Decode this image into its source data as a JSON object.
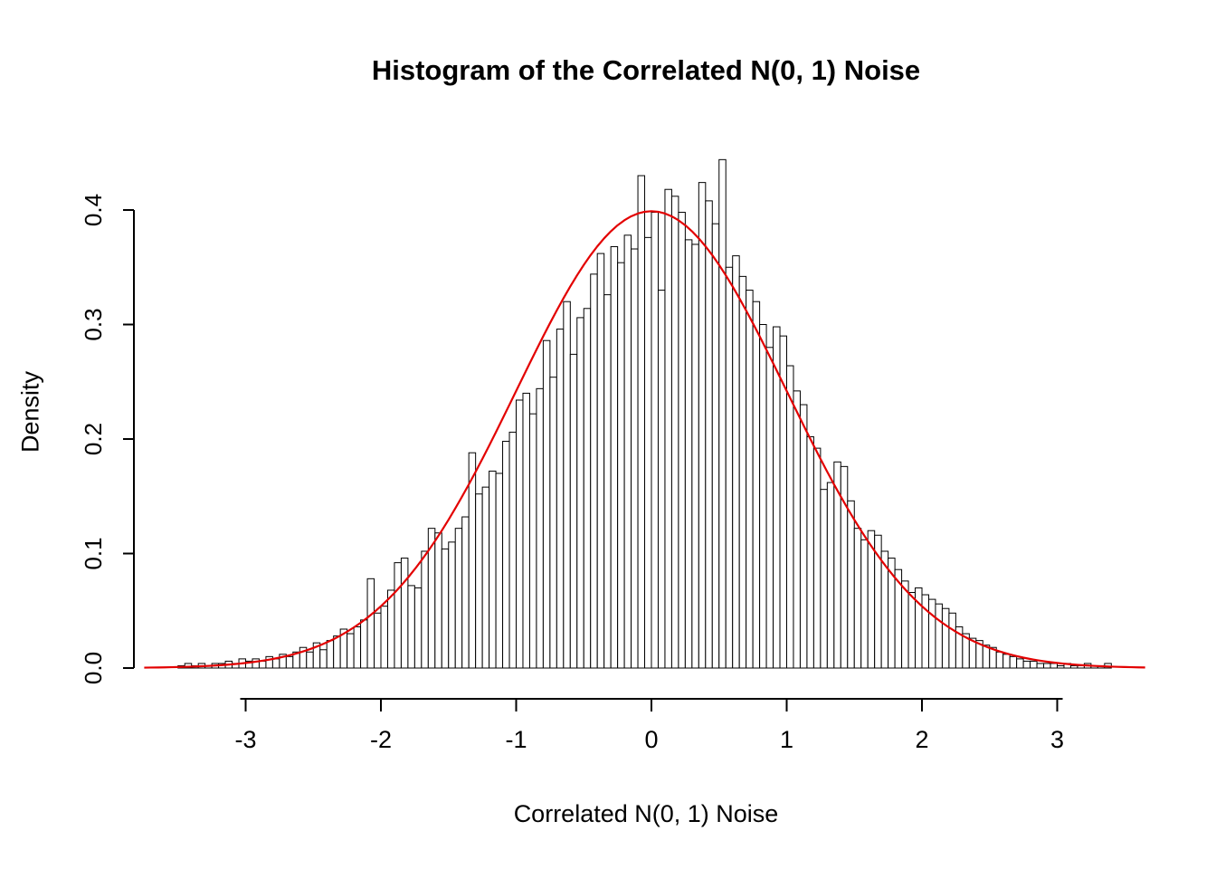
{
  "page": {
    "background": "#ffffff"
  },
  "chart_data": {
    "type": "bar",
    "subtype": "histogram",
    "title": "Histogram of the Correlated N(0, 1) Noise",
    "xlabel": "Correlated N(0, 1) Noise",
    "ylabel": "Density",
    "bin_start": -3.5,
    "bin_width": 0.05,
    "densities": [
      0.002,
      0.004,
      0.002,
      0.004,
      0.002,
      0.004,
      0.004,
      0.006,
      0.004,
      0.008,
      0.006,
      0.008,
      0.006,
      0.01,
      0.008,
      0.012,
      0.01,
      0.014,
      0.018,
      0.014,
      0.022,
      0.016,
      0.024,
      0.028,
      0.034,
      0.03,
      0.036,
      0.042,
      0.078,
      0.048,
      0.054,
      0.068,
      0.092,
      0.096,
      0.072,
      0.07,
      0.102,
      0.122,
      0.118,
      0.104,
      0.11,
      0.122,
      0.132,
      0.188,
      0.152,
      0.158,
      0.172,
      0.17,
      0.198,
      0.206,
      0.234,
      0.24,
      0.222,
      0.244,
      0.286,
      0.254,
      0.296,
      0.32,
      0.274,
      0.306,
      0.314,
      0.344,
      0.362,
      0.326,
      0.368,
      0.354,
      0.378,
      0.366,
      0.43,
      0.376,
      0.398,
      0.33,
      0.418,
      0.412,
      0.398,
      0.374,
      0.37,
      0.424,
      0.408,
      0.388,
      0.444,
      0.35,
      0.36,
      0.342,
      0.33,
      0.32,
      0.3,
      0.28,
      0.298,
      0.29,
      0.264,
      0.242,
      0.23,
      0.202,
      0.192,
      0.156,
      0.162,
      0.18,
      0.176,
      0.146,
      0.122,
      0.112,
      0.12,
      0.116,
      0.102,
      0.096,
      0.086,
      0.076,
      0.066,
      0.07,
      0.064,
      0.06,
      0.056,
      0.052,
      0.048,
      0.036,
      0.03,
      0.026,
      0.024,
      0.02,
      0.018,
      0.014,
      0.012,
      0.01,
      0.008,
      0.006,
      0.006,
      0.004,
      0.004,
      0.004,
      0.002,
      0.004,
      0.002,
      0.002,
      0.004,
      0.002,
      0.002,
      0.004
    ],
    "x_ticks": [
      -3,
      -2,
      -1,
      0,
      1,
      2,
      3
    ],
    "y_ticks": [
      0.0,
      0.1,
      0.2,
      0.3,
      0.4
    ],
    "xlim": [
      -3.8,
      3.8
    ],
    "ylim": [
      0,
      0.45
    ],
    "grid": false,
    "legend": null,
    "bar_fill": "#ffffff",
    "bar_stroke": "#000000",
    "axis_color": "#000000",
    "overlay_curve": {
      "type": "normal_pdf",
      "mean": 0,
      "sd": 1,
      "color": "#e30000",
      "x_range": [
        -3.75,
        3.65
      ]
    }
  }
}
